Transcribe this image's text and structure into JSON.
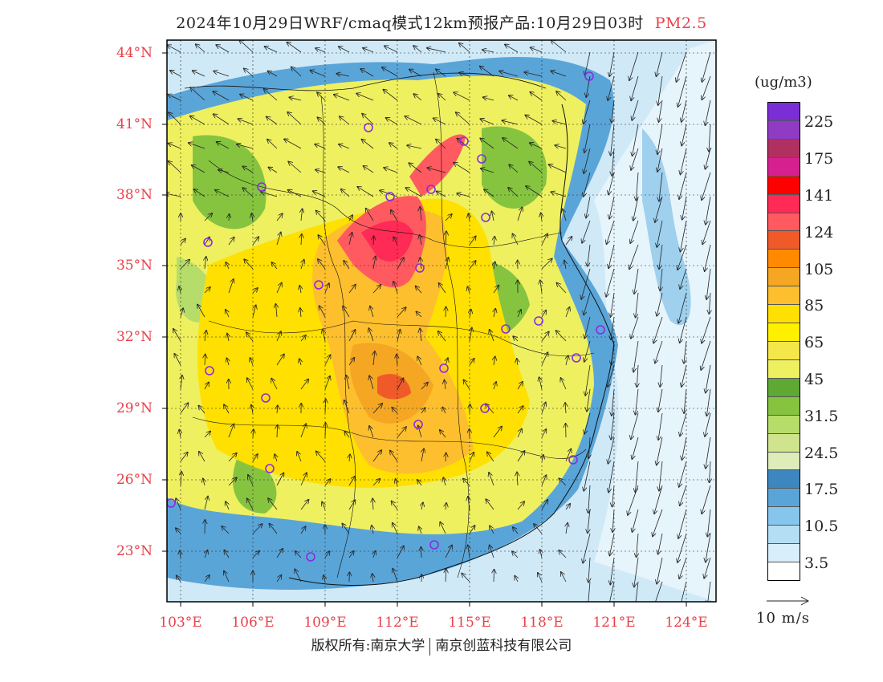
{
  "title": {
    "main": "2024年10月29日WRF/cmaq模式12km预报产品:10月29日03时",
    "variable": "PM2.5"
  },
  "map": {
    "lat_labels": [
      "44°N",
      "41°N",
      "38°N",
      "35°N",
      "32°N",
      "29°N",
      "26°N",
      "23°N"
    ],
    "lon_labels": [
      "103°E",
      "106°E",
      "109°E",
      "112°E",
      "115°E",
      "118°E",
      "121°E",
      "124°E"
    ],
    "stations_count": 27
  },
  "legend": {
    "unit": "(ug/m3)",
    "levels": [
      "225",
      "175",
      "141",
      "124",
      "105",
      "85",
      "65",
      "45",
      "31.5",
      "24.5",
      "17.5",
      "10.5",
      "3.5"
    ],
    "colors": [
      "#7b2ed6",
      "#8f3bc4",
      "#b03060",
      "#d62090",
      "#ff0000",
      "#ff2a55",
      "#ff5a60",
      "#f05a28",
      "#ff8a00",
      "#f5a623",
      "#fdbf2d",
      "#ffe000",
      "#fff000",
      "#f5e64a",
      "#eef060",
      "#5ea833",
      "#86c440",
      "#b6dd6a",
      "#cfe48c",
      "#deecb8",
      "#3e86c0",
      "#5aa5d8",
      "#86c6ec",
      "#b4def4",
      "#d8eefa",
      "#ffffff"
    ],
    "reference_vector": "10 m/s"
  },
  "footer": {
    "copyright": "版权所有:南京大学",
    "company": "南京创蓝科技有限公司"
  }
}
